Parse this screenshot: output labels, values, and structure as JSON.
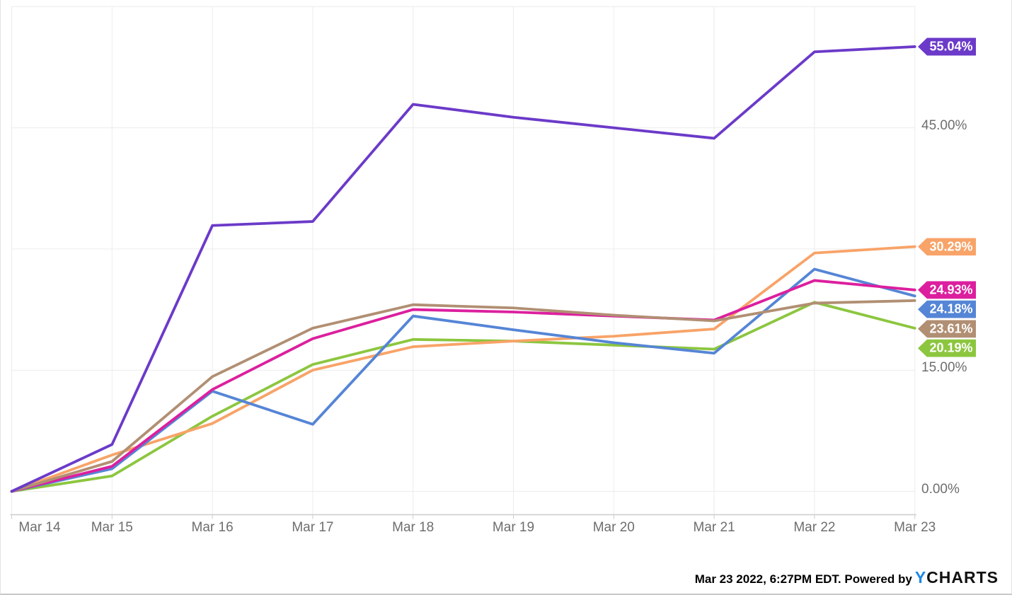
{
  "chart_data": {
    "type": "line",
    "title": "",
    "xlabel": "",
    "ylabel": "",
    "x_labels": [
      "Mar 14",
      "Mar 15",
      "Mar 16",
      "Mar 17",
      "Mar 18",
      "Mar 19",
      "Mar 20",
      "Mar 21",
      "Mar 22",
      "Mar 23"
    ],
    "y_axis": {
      "unit": "%",
      "tick_labels": [
        {
          "pct": 45,
          "label": "45.00%"
        },
        {
          "pct": 15,
          "label": "15.00%"
        },
        {
          "pct": 0,
          "label": "0.00%"
        }
      ],
      "grid_pcts": [
        0,
        15,
        30,
        45,
        60
      ],
      "range_pct": [
        -2.9,
        62.8
      ],
      "note": "30.00% tick label hidden behind orange end-label badge"
    },
    "grid": true,
    "legend_position": "end-labels-right",
    "series": [
      {
        "name": "green-series",
        "color": "#8CC63F",
        "end_label": "20.19%",
        "values": [
          0,
          1.9,
          9.3,
          15.7,
          18.8,
          18.6,
          18.1,
          17.6,
          23.4,
          20.19
        ]
      },
      {
        "name": "orange-series",
        "color": "#F8A368",
        "end_label": "30.29%",
        "values": [
          0,
          4.5,
          8.4,
          15.0,
          17.9,
          18.6,
          19.2,
          20.1,
          29.5,
          30.29
        ]
      },
      {
        "name": "blue-series",
        "color": "#5585D6",
        "end_label": "24.18%",
        "values": [
          0,
          2.8,
          12.4,
          8.3,
          21.7,
          20.0,
          18.4,
          17.1,
          27.5,
          24.18
        ]
      },
      {
        "name": "magenta-series",
        "color": "#DC1F9E",
        "end_label": "24.93%",
        "values": [
          0,
          3.1,
          12.6,
          18.9,
          22.5,
          22.2,
          21.7,
          21.2,
          26.1,
          24.93
        ]
      },
      {
        "name": "brown-series",
        "color": "#B18F73",
        "end_label": "23.61%",
        "values": [
          0,
          3.7,
          14.2,
          20.2,
          23.1,
          22.7,
          21.8,
          21.1,
          23.3,
          23.61
        ]
      },
      {
        "name": "purple-series",
        "color": "#6B3AC9",
        "end_label": "55.04%",
        "values": [
          0,
          5.8,
          32.9,
          33.4,
          47.9,
          46.3,
          45.0,
          43.7,
          54.4,
          55.04
        ]
      }
    ]
  },
  "style": {
    "grid_color": "#ECECEC",
    "axis_line_color": "#CCCCCC",
    "tick_text_color": "#6E6E6E",
    "logo_blue": "#1E88E5"
  },
  "footer": {
    "timestamp": "Mar 23 2022, 6:27PM EDT. ",
    "powered_by": "Powered by",
    "logo": {
      "y": "Y",
      "rest": "CHARTS"
    }
  }
}
